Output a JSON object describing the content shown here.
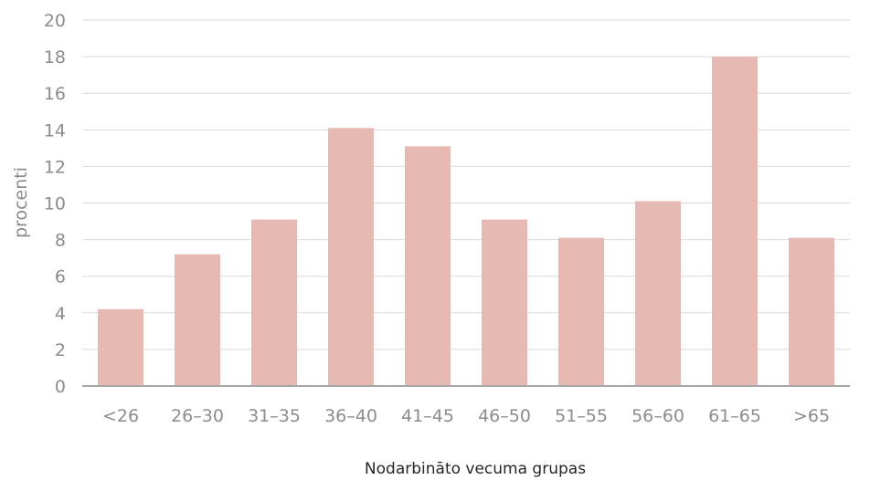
{
  "chart_data": {
    "type": "bar",
    "title": "",
    "xlabel": "Nodarbināto vecuma grupas",
    "ylabel": "procenti",
    "categories": [
      "<26",
      "26–30",
      "31–35",
      "36–40",
      "41–45",
      "46–50",
      "51–55",
      "56–60",
      "61–65",
      ">65"
    ],
    "values": [
      4.2,
      7.2,
      9.1,
      14.1,
      13.1,
      9.1,
      8.1,
      10.1,
      18.0,
      8.1
    ],
    "ylim": [
      0,
      20
    ],
    "yticks": [
      0,
      2,
      4,
      6,
      8,
      10,
      12,
      14,
      16,
      18,
      20
    ],
    "grid": true,
    "legend": "none",
    "colors": {
      "bar": "#e6b9b3",
      "grid": "#d9d9d9",
      "axis": "#a6a6a6",
      "tick_text": "#8c8c8c",
      "xlabel_text": "#262626"
    }
  }
}
